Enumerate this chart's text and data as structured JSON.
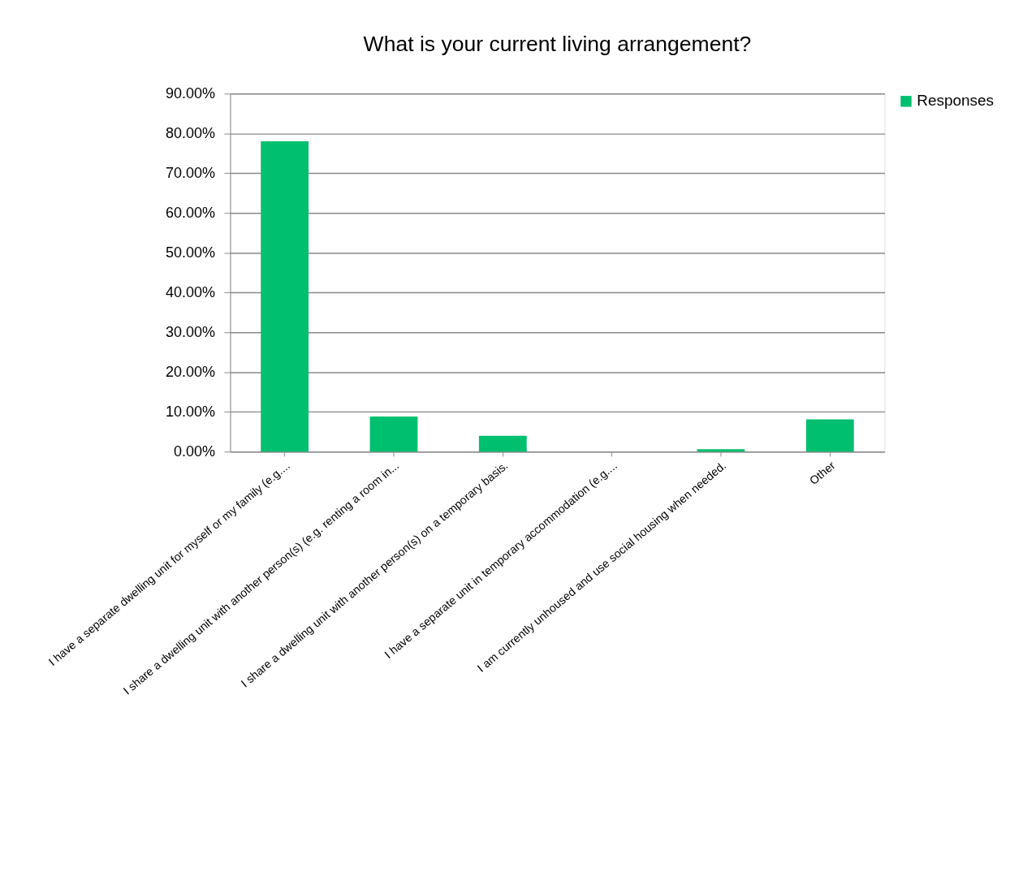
{
  "chart_data": {
    "type": "bar",
    "title": "What is your current living arrangement?",
    "categories": [
      "I have a separate dwelling unit for myself or my family (e.g....",
      "I share a dwelling unit with another person(s) (e.g. renting a room in...",
      "I share a dwelling unit with another person(s) on a temporary basis.",
      "I have a separate unit in temporary accommodation (e.g....",
      "I am currently unhoused and use social housing when needed.",
      "Other"
    ],
    "series": [
      {
        "name": "Responses",
        "color": "#00bf6f",
        "values": [
          78.0,
          8.8,
          4.0,
          0,
          0.6,
          8.1
        ]
      }
    ],
    "ylim": [
      0,
      90
    ],
    "yticks": [
      {
        "value": 0,
        "label": "0.00%"
      },
      {
        "value": 10,
        "label": "10.00%"
      },
      {
        "value": 20,
        "label": "20.00%"
      },
      {
        "value": 30,
        "label": "30.00%"
      },
      {
        "value": 40,
        "label": "40.00%"
      },
      {
        "value": 50,
        "label": "50.00%"
      },
      {
        "value": 60,
        "label": "60.00%"
      },
      {
        "value": 70,
        "label": "70.00%"
      },
      {
        "value": 80,
        "label": "80.00%"
      },
      {
        "value": 90,
        "label": "90.00%"
      }
    ],
    "grid": "y",
    "legend": "right"
  }
}
